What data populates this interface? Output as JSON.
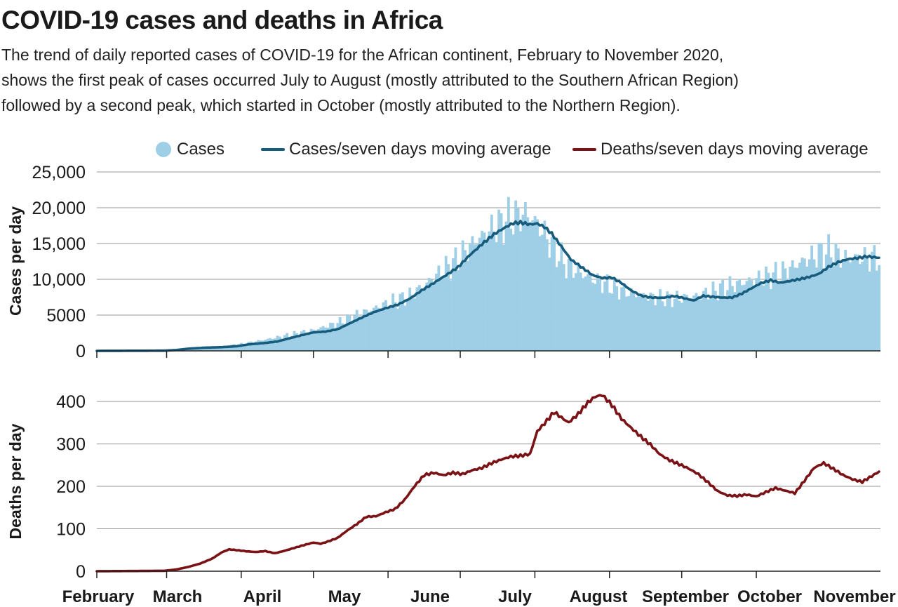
{
  "title": "COVID-19 cases and deaths in Africa",
  "subtitle": [
    "The trend of daily reported cases of COVID-19 for the African continent, February to November 2020,",
    "shows the first peak of cases occurred July to August (mostly attributed to the Southern African Region)",
    "followed by a second peak, which started in October (mostly attributed to the Northern Region)."
  ],
  "legend": [
    {
      "label": "Cases",
      "kind": "dot",
      "color": "#9ecfe6"
    },
    {
      "label": "Cases/seven days moving average",
      "kind": "line",
      "color": "#175c7d"
    },
    {
      "label": "Deaths/seven days moving average",
      "kind": "line",
      "color": "#7a1216"
    }
  ],
  "chart_data": [
    {
      "type": "bar",
      "ylabel": "Cases per day",
      "ylim": [
        0,
        25000
      ],
      "yticks": [
        "25,000",
        "20,000",
        "15,000",
        "10,000",
        "5000",
        "0"
      ],
      "ytick_values": [
        25000,
        20000,
        15000,
        10000,
        5000,
        0
      ],
      "xticks": [
        "February",
        "March",
        "April",
        "May",
        "June",
        "July",
        "August",
        "September",
        "October",
        "November"
      ],
      "grid": true,
      "series": [
        {
          "name": "Cases",
          "type": "bar",
          "color": "#9ecfe6",
          "points": [
            [
              0,
              0
            ],
            [
              20,
              0
            ],
            [
              29,
              100
            ],
            [
              45,
              350
            ],
            [
              60,
              950
            ],
            [
              75,
              1900
            ],
            [
              90,
              2900
            ],
            [
              100,
              3900
            ],
            [
              110,
              5300
            ],
            [
              120,
              6500
            ],
            [
              130,
              7700
            ],
            [
              140,
              10200
            ],
            [
              150,
              12800
            ],
            [
              157,
              15300
            ],
            [
              165,
              17200
            ],
            [
              172,
              18500
            ],
            [
              178,
              19200
            ],
            [
              183,
              17800
            ],
            [
              190,
              14200
            ],
            [
              195,
              12000
            ],
            [
              202,
              10700
            ],
            [
              210,
              9500
            ],
            [
              218,
              8500
            ],
            [
              225,
              7800
            ],
            [
              232,
              7400
            ],
            [
              240,
              7300
            ],
            [
              248,
              7600
            ],
            [
              255,
              8200
            ],
            [
              262,
              9000
            ],
            [
              270,
              9700
            ],
            [
              277,
              10200
            ],
            [
              285,
              11000
            ],
            [
              292,
              12300
            ],
            [
              300,
              13600
            ],
            [
              305,
              13900
            ],
            [
              310,
              13000
            ]
          ]
        },
        {
          "name": "Cases/seven days moving average",
          "type": "line",
          "color": "#175c7d",
          "points": [
            [
              0,
              0
            ],
            [
              28,
              30
            ],
            [
              33,
              120
            ],
            [
              38,
              300
            ],
            [
              45,
              450
            ],
            [
              52,
              520
            ],
            [
              58,
              650
            ],
            [
              63,
              900
            ],
            [
              70,
              1100
            ],
            [
              75,
              1300
            ],
            [
              80,
              1750
            ],
            [
              85,
              2200
            ],
            [
              90,
              2600
            ],
            [
              95,
              2700
            ],
            [
              100,
              3000
            ],
            [
              105,
              3800
            ],
            [
              110,
              4600
            ],
            [
              115,
              5400
            ],
            [
              120,
              6000
            ],
            [
              125,
              6500
            ],
            [
              130,
              7300
            ],
            [
              135,
              8400
            ],
            [
              140,
              9400
            ],
            [
              145,
              10500
            ],
            [
              150,
              11700
            ],
            [
              155,
              13500
            ],
            [
              160,
              15000
            ],
            [
              165,
              16300
            ],
            [
              170,
              17200
            ],
            [
              173,
              17700
            ],
            [
              176,
              17800
            ],
            [
              180,
              17600
            ],
            [
              183,
              17800
            ],
            [
              186,
              17400
            ],
            [
              189,
              16500
            ],
            [
              193,
              14700
            ],
            [
              197,
              12800
            ],
            [
              202,
              11500
            ],
            [
              206,
              10500
            ],
            [
              210,
              10100
            ],
            [
              214,
              10200
            ],
            [
              218,
              9500
            ],
            [
              222,
              8500
            ],
            [
              226,
              7800
            ],
            [
              230,
              7500
            ],
            [
              235,
              7400
            ],
            [
              240,
              7600
            ],
            [
              244,
              7300
            ],
            [
              248,
              7000
            ],
            [
              252,
              7700
            ],
            [
              256,
              7600
            ],
            [
              260,
              7500
            ],
            [
              264,
              7500
            ],
            [
              268,
              8000
            ],
            [
              272,
              8700
            ],
            [
              276,
              9400
            ],
            [
              280,
              9800
            ],
            [
              284,
              9500
            ],
            [
              288,
              9800
            ],
            [
              292,
              10100
            ],
            [
              296,
              10400
            ],
            [
              300,
              10800
            ],
            [
              304,
              11700
            ],
            [
              308,
              12300
            ],
            [
              312,
              12700
            ],
            [
              316,
              12900
            ],
            [
              320,
              13200
            ],
            [
              325,
              13100
            ]
          ]
        }
      ]
    },
    {
      "type": "line",
      "ylabel": "Deaths per day",
      "ylim": [
        0,
        420
      ],
      "yticks": [
        "400",
        "300",
        "200",
        "100",
        "0"
      ],
      "ytick_values": [
        400,
        300,
        200,
        100,
        0
      ],
      "xticks": [
        "February",
        "March",
        "April",
        "May",
        "June",
        "July",
        "August",
        "September",
        "October",
        "November"
      ],
      "grid": true,
      "series": [
        {
          "name": "Deaths/seven days moving average",
          "type": "line",
          "color": "#7a1216",
          "points": [
            [
              0,
              0
            ],
            [
              28,
              1
            ],
            [
              33,
              4
            ],
            [
              38,
              10
            ],
            [
              43,
              18
            ],
            [
              48,
              30
            ],
            [
              52,
              45
            ],
            [
              55,
              52
            ],
            [
              58,
              50
            ],
            [
              62,
              47
            ],
            [
              66,
              45
            ],
            [
              70,
              47
            ],
            [
              74,
              42
            ],
            [
              78,
              48
            ],
            [
              82,
              55
            ],
            [
              86,
              62
            ],
            [
              90,
              68
            ],
            [
              93,
              65
            ],
            [
              96,
              70
            ],
            [
              100,
              78
            ],
            [
              104,
              95
            ],
            [
              108,
              110
            ],
            [
              112,
              128
            ],
            [
              116,
              130
            ],
            [
              120,
              140
            ],
            [
              124,
              148
            ],
            [
              128,
              170
            ],
            [
              132,
              200
            ],
            [
              136,
              225
            ],
            [
              140,
              230
            ],
            [
              144,
              225
            ],
            [
              148,
              232
            ],
            [
              152,
              230
            ],
            [
              156,
              240
            ],
            [
              160,
              245
            ],
            [
              164,
              255
            ],
            [
              168,
              262
            ],
            [
              172,
              268
            ],
            [
              176,
              270
            ],
            [
              180,
              275
            ],
            [
              183,
              330
            ],
            [
              186,
              350
            ],
            [
              190,
              378
            ],
            [
              193,
              365
            ],
            [
              196,
              352
            ],
            [
              200,
              370
            ],
            [
              204,
              395
            ],
            [
              207,
              408
            ],
            [
              210,
              412
            ],
            [
              214,
              390
            ],
            [
              218,
              360
            ],
            [
              222,
              340
            ],
            [
              226,
              320
            ],
            [
              230,
              300
            ],
            [
              234,
              275
            ],
            [
              238,
              260
            ],
            [
              242,
              250
            ],
            [
              246,
              240
            ],
            [
              250,
              228
            ],
            [
              254,
              210
            ],
            [
              258,
              190
            ],
            [
              262,
              180
            ],
            [
              266,
              178
            ],
            [
              270,
              180
            ],
            [
              274,
              175
            ],
            [
              278,
              185
            ],
            [
              282,
              195
            ],
            [
              286,
              190
            ],
            [
              290,
              185
            ],
            [
              294,
              215
            ],
            [
              298,
              245
            ],
            [
              302,
              255
            ],
            [
              306,
              240
            ],
            [
              310,
              225
            ],
            [
              314,
              215
            ],
            [
              318,
              210
            ],
            [
              322,
              225
            ],
            [
              326,
              240
            ],
            [
              330,
              252
            ],
            [
              334,
              248
            ],
            [
              337,
              315
            ],
            [
              340,
              312
            ],
            [
              343,
              328
            ],
            [
              346,
              335
            ],
            [
              349,
              295
            ],
            [
              352,
              300
            ],
            [
              355,
              305
            ],
            [
              358,
              320
            ],
            [
              361,
              318
            ]
          ]
        }
      ]
    }
  ]
}
